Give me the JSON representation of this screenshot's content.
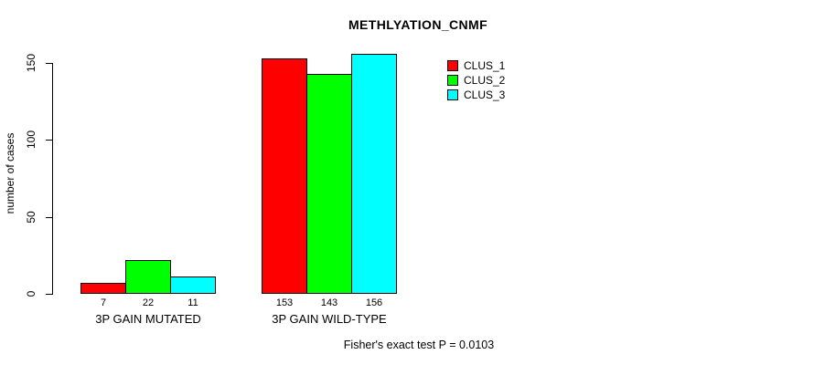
{
  "chart_data": {
    "type": "bar",
    "title": "METHLYATION_CNMF",
    "ylabel": "number of cases",
    "xlabel": "",
    "ylim": [
      0,
      160
    ],
    "yticks": [
      0,
      50,
      100,
      150
    ],
    "grid": false,
    "legend_position": "top-right",
    "categories": [
      "3P GAIN MUTATED",
      "3P GAIN WILD-TYPE"
    ],
    "series": [
      {
        "name": "CLUS_1",
        "color": "#FF0000",
        "values": [
          7,
          153
        ]
      },
      {
        "name": "CLUS_2",
        "color": "#00FF00",
        "values": [
          22,
          143
        ]
      },
      {
        "name": "CLUS_3",
        "color": "#00FFFF",
        "values": [
          11,
          156
        ]
      }
    ],
    "bar_value_labels": [
      [
        7,
        22,
        11
      ],
      [
        153,
        143,
        156
      ]
    ],
    "annotation": "Fisher's exact test P = 0.0103"
  },
  "colors": {
    "background": "#FFFFFF",
    "axis": "#000000",
    "text": "#000000",
    "bar_border": "#000000",
    "clus_1": "#FF0000",
    "clus_2": "#00FF00",
    "clus_3": "#00FFFF"
  }
}
